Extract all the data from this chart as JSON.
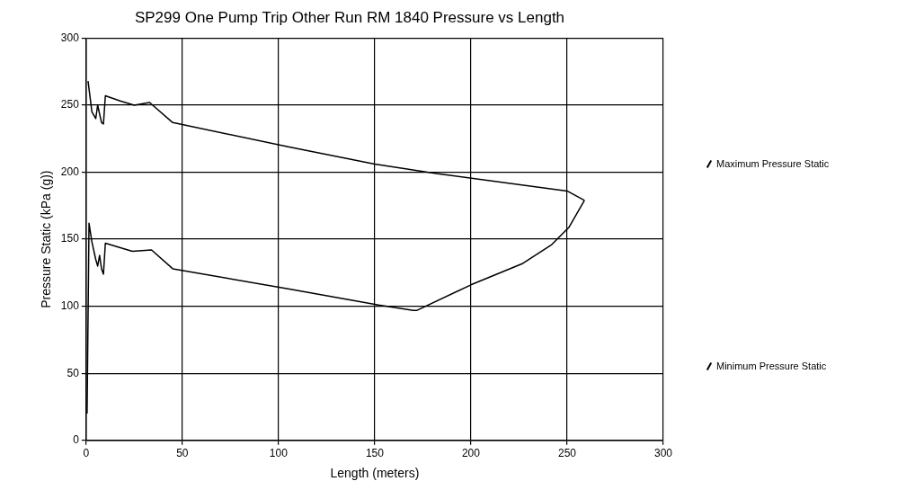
{
  "chart_data": {
    "type": "line",
    "title": "SP299 One Pump Trip Other Run RM 1840 Pressure vs Length",
    "xlabel": "Length (meters)",
    "ylabel": "Pressure Static (kPa (g))",
    "xlim": [
      0,
      300
    ],
    "xticks": [
      0,
      50,
      100,
      150,
      200,
      250,
      300
    ],
    "ylim": [
      0,
      300
    ],
    "yticks": [
      0,
      50,
      100,
      150,
      200,
      250,
      300
    ],
    "grid": true,
    "legend": "right",
    "marker": "none",
    "series": [
      {
        "name": "Maximum Pressure Static",
        "color": "#000000",
        "x": [
          1,
          3,
          5,
          6,
          8,
          9,
          10,
          18,
          25,
          33,
          45,
          105,
          150,
          182,
          250,
          259
        ],
        "values": [
          268,
          245,
          240,
          250,
          237,
          236,
          257,
          253,
          250,
          252,
          237,
          219,
          206,
          199,
          186,
          179
        ]
      },
      {
        "name": "Minimum Pressure Static",
        "color": "#000000",
        "x": [
          0.5,
          1.5,
          3,
          5,
          6,
          7,
          8,
          9,
          10,
          24,
          34,
          45,
          105,
          152,
          170,
          172,
          200,
          227,
          242,
          251,
          259
        ],
        "values": [
          20,
          162,
          148,
          135,
          130,
          138,
          128,
          124,
          147,
          141,
          142,
          128,
          113,
          101,
          97,
          97,
          116,
          132,
          146,
          159,
          179
        ]
      }
    ]
  }
}
